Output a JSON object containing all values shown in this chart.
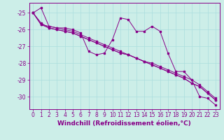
{
  "x": [
    0,
    1,
    2,
    3,
    4,
    5,
    6,
    7,
    8,
    9,
    10,
    11,
    12,
    13,
    14,
    15,
    16,
    17,
    18,
    19,
    20,
    21,
    22,
    23
  ],
  "line1": [
    -25.0,
    -24.7,
    -25.8,
    -25.9,
    -25.9,
    -26.0,
    -26.2,
    -27.3,
    -27.5,
    -27.4,
    -26.6,
    -25.3,
    -25.4,
    -26.1,
    -26.1,
    -25.8,
    -26.1,
    -27.4,
    -28.5,
    -28.5,
    -29.0,
    -30.0,
    -30.1,
    -30.5
  ],
  "line2": [
    -25.0,
    -25.7,
    -25.8,
    -25.9,
    -26.0,
    -26.1,
    -26.3,
    -26.5,
    -26.7,
    -26.9,
    -27.1,
    -27.3,
    -27.5,
    -27.7,
    -27.9,
    -28.0,
    -28.2,
    -28.4,
    -28.6,
    -28.8,
    -29.0,
    -29.3,
    -29.7,
    -30.1
  ],
  "line3": [
    -25.0,
    -25.7,
    -25.9,
    -26.0,
    -26.1,
    -26.2,
    -26.4,
    -26.6,
    -26.8,
    -27.0,
    -27.2,
    -27.4,
    -27.5,
    -27.7,
    -27.9,
    -28.1,
    -28.3,
    -28.5,
    -28.7,
    -28.9,
    -29.2,
    -29.4,
    -29.8,
    -30.2
  ],
  "line4": [
    -25.0,
    -25.6,
    -25.9,
    -26.0,
    -26.1,
    -26.2,
    -26.4,
    -26.6,
    -26.8,
    -27.0,
    -27.2,
    -27.4,
    -27.5,
    -27.7,
    -27.9,
    -28.1,
    -28.3,
    -28.5,
    -28.7,
    -28.9,
    -29.2,
    -29.4,
    -29.8,
    -30.2
  ],
  "line_color": "#880088",
  "bg_color": "#cceee8",
  "grid_color": "#aadddd",
  "xlabel": "Windchill (Refroidissement éolien,°C)",
  "xlabel_fontsize": 6.5,
  "tick_fontsize": 5.5,
  "ylim": [
    -30.75,
    -24.4
  ],
  "yticks": [
    -30,
    -29,
    -28,
    -27,
    -26,
    -25
  ],
  "xlim": [
    -0.5,
    23.5
  ]
}
